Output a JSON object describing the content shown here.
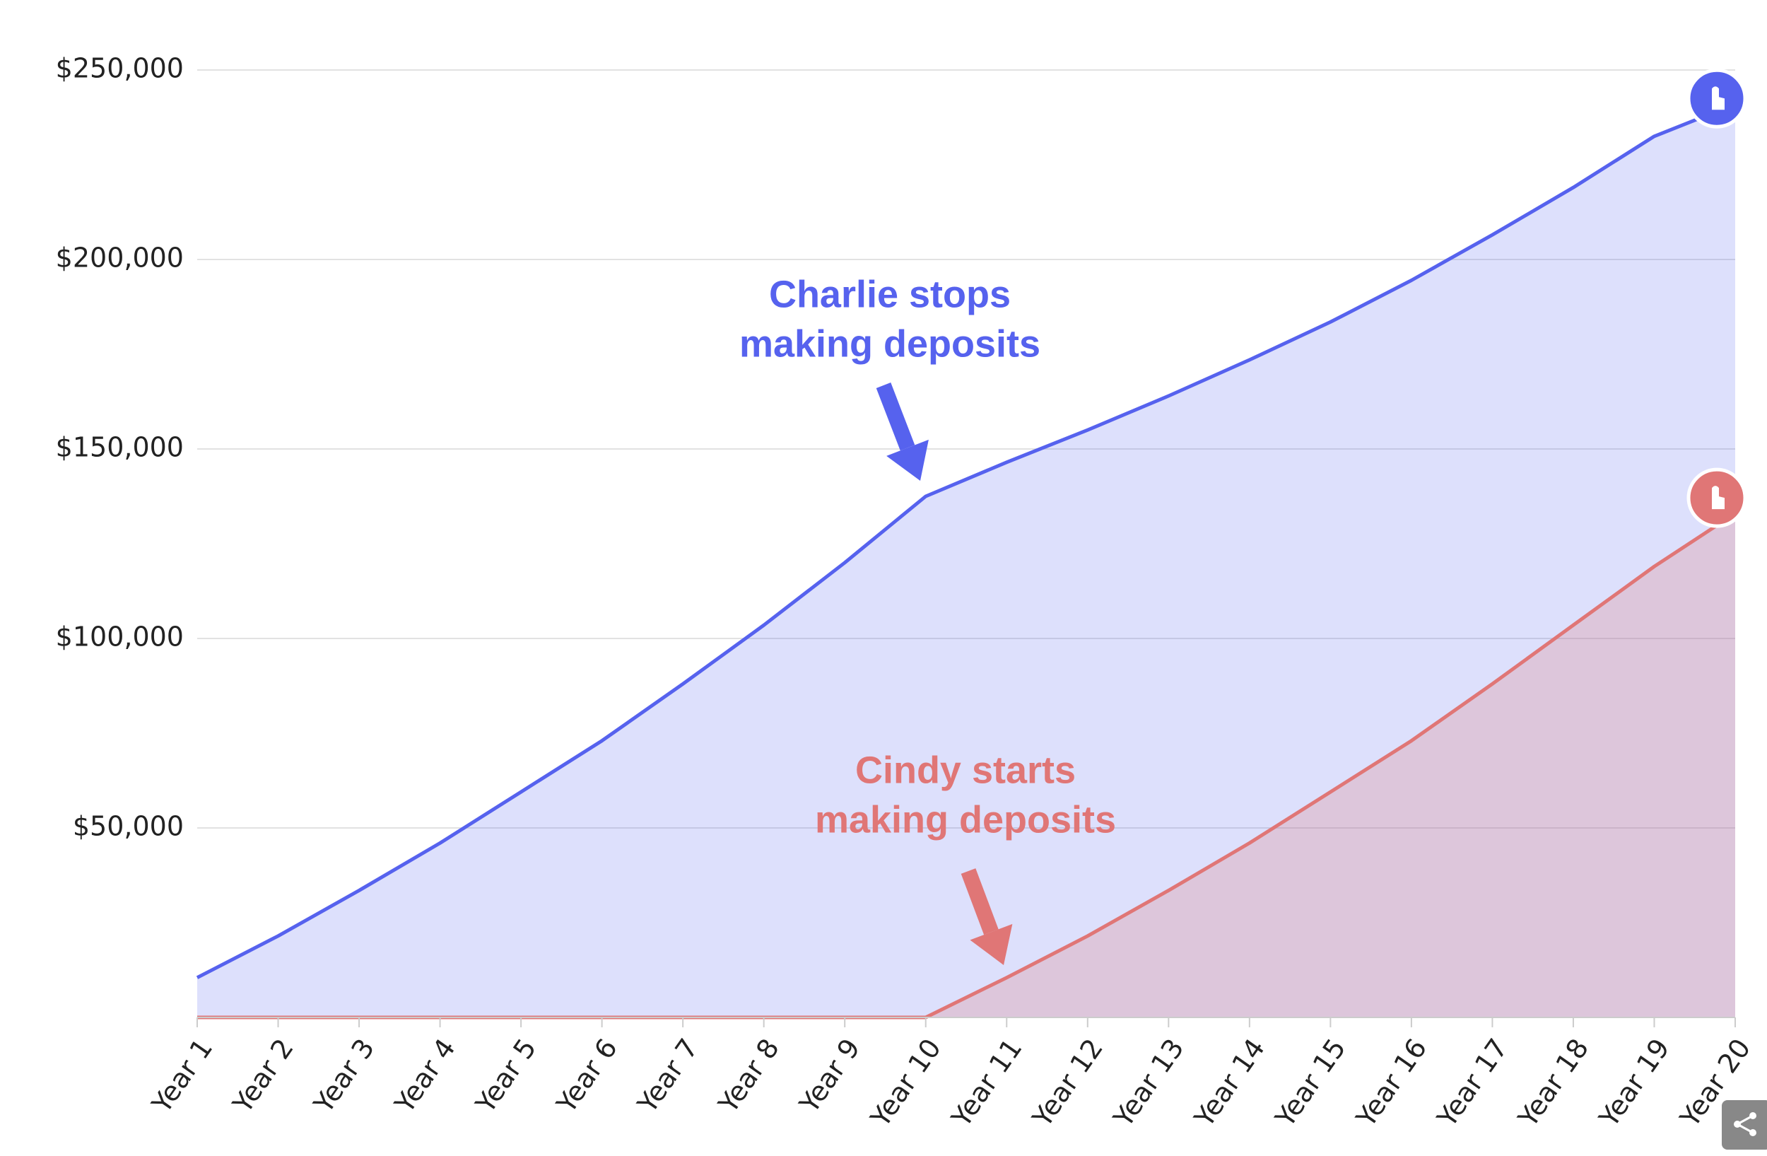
{
  "chart_data": {
    "type": "area",
    "categories": [
      "Year 1",
      "Year 2",
      "Year 3",
      "Year 4",
      "Year 5",
      "Year 6",
      "Year 7",
      "Year 8",
      "Year 9",
      "Year 10",
      "Year 11",
      "Year 12",
      "Year 13",
      "Year 14",
      "Year 15",
      "Year 16",
      "Year 17",
      "Year 18",
      "Year 19",
      "Year 20"
    ],
    "series": [
      {
        "color": "#5662ee",
        "values": [
          10500,
          21500,
          33500,
          46000,
          59500,
          73000,
          88000,
          103500,
          120000,
          137500,
          146500,
          155000,
          164000,
          173500,
          183500,
          194500,
          206500,
          219000,
          232500,
          241000
        ]
      },
      {
        "color": "#e07676",
        "values": [
          0,
          0,
          0,
          0,
          0,
          0,
          0,
          0,
          0,
          0,
          10500,
          21500,
          33500,
          46000,
          59500,
          73000,
          88000,
          103500,
          119000,
          133000
        ]
      }
    ],
    "ylim": [
      0,
      250000
    ],
    "yticks": [
      {
        "value": 50000,
        "label": "$50,000"
      },
      {
        "value": 100000,
        "label": "$100,000"
      },
      {
        "value": 150000,
        "label": "$150,000"
      },
      {
        "value": 200000,
        "label": "$200,000"
      },
      {
        "value": 250000,
        "label": "$250,000"
      }
    ],
    "grid": true,
    "annotations": [
      {
        "lines": [
          "Charlie stops",
          "making deposits"
        ]
      },
      {
        "lines": [
          "Cindy starts",
          "making deposits"
        ]
      }
    ]
  }
}
